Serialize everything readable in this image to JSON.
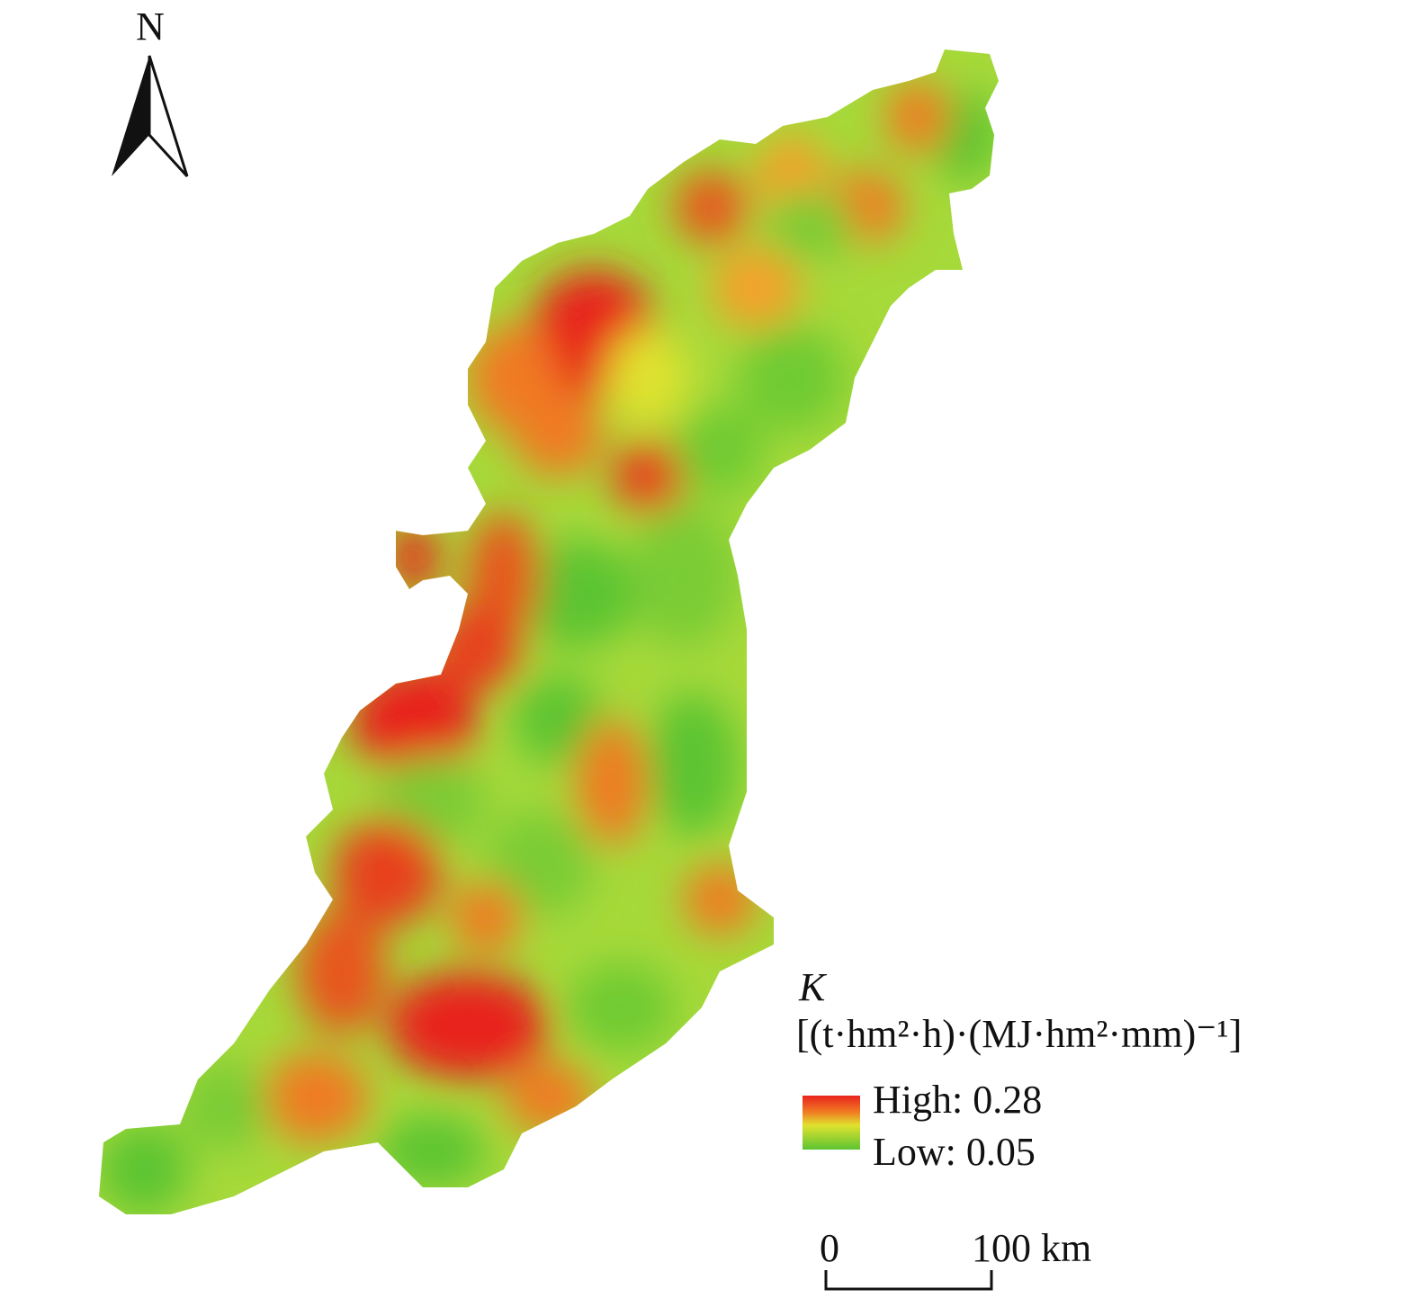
{
  "north_arrow": {
    "label": "N"
  },
  "legend": {
    "title": "K",
    "unit": "[(t·hm²·h)·(MJ·hm²·mm)⁻¹]",
    "high": "High: 0.28",
    "low": "Low: 0.05"
  },
  "scale_bar": {
    "start": "0",
    "end": "100 km"
  }
}
